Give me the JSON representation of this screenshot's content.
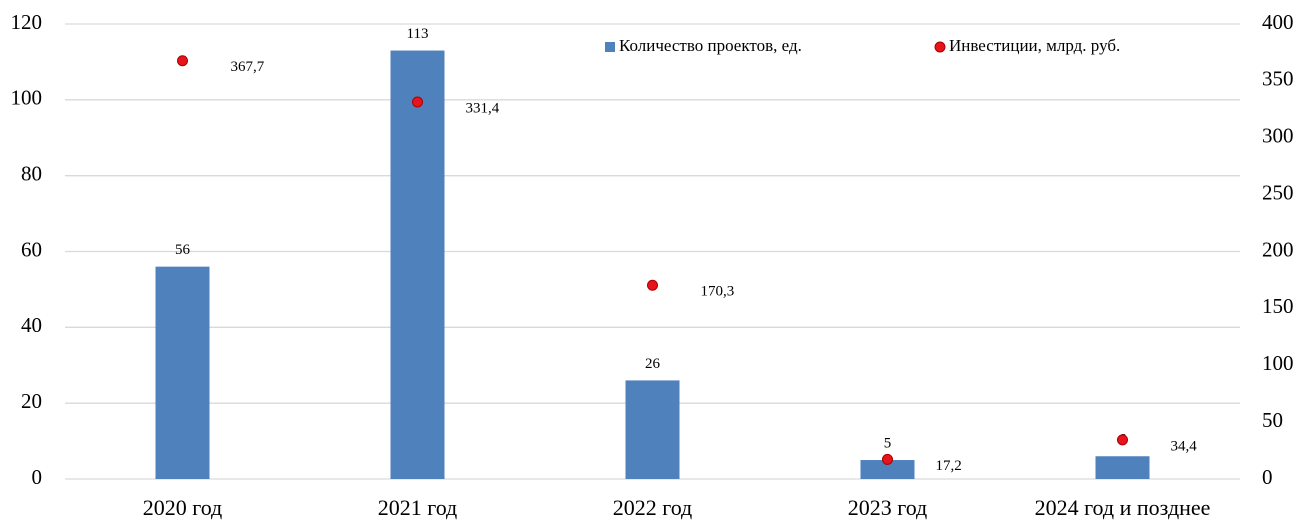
{
  "chart_data": {
    "type": "bar",
    "categories": [
      "2020 год",
      "2021 год",
      "2022 год",
      "2023 год",
      "2024 год и позднее"
    ],
    "series": [
      {
        "name": "Количество проектов, ед.",
        "type": "bar",
        "color": "#4f81bd",
        "values": [
          56,
          113,
          26,
          5,
          6
        ]
      },
      {
        "name": "Инвестиции, млрд. руб.",
        "type": "scatter",
        "axis": "y2",
        "color": "#e8141c",
        "values": [
          367.7,
          331.4,
          170.3,
          17.2,
          34.4
        ],
        "value_labels": [
          "367,7",
          "331,4",
          "170,3",
          "17,2",
          "34,4"
        ]
      }
    ],
    "ylim": [
      0,
      120
    ],
    "yticks": [
      0,
      20,
      40,
      60,
      80,
      100,
      120
    ],
    "y2lim": [
      0,
      400
    ],
    "y2ticks": [
      0,
      50,
      100,
      150,
      200,
      250,
      300,
      350,
      400
    ],
    "grid": true,
    "legend": "top-right"
  }
}
